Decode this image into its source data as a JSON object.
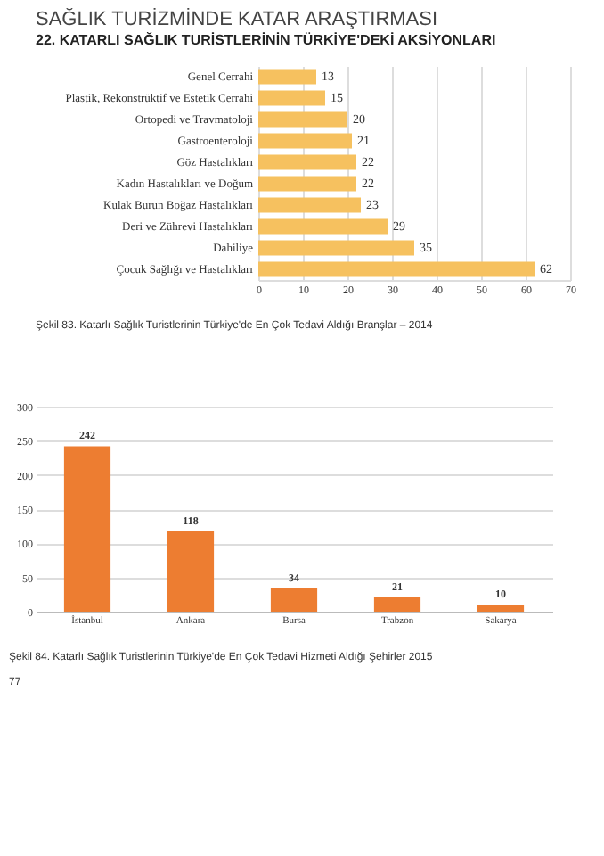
{
  "chart_data": [
    {
      "type": "bar",
      "orientation": "horizontal",
      "title": "SAĞLIK TURİZMİNDE KATAR ARAŞTIRMASI",
      "subtitle": "22. KATARLI SAĞLIK TURİSTLERİNİN TÜRKİYE'DEKİ AKSİYONLARI",
      "categories": [
        "Genel Cerrahi",
        "Plastik, Rekonstrüktif ve Estetik Cerrahi",
        "Ortopedi ve Travmatoloji",
        "Gastroenteroloji",
        "Göz Hastalıkları",
        "Kadın Hastalıkları ve Doğum",
        "Kulak Burun Boğaz Hastalıkları",
        "Deri ve Zührevi Hastalıkları",
        "Dahiliye",
        "Çocuk Sağlığı ve Hastalıkları"
      ],
      "values": [
        13,
        15,
        20,
        21,
        22,
        22,
        23,
        29,
        35,
        62
      ],
      "color": "#f6c15f",
      "xlim": [
        0,
        70
      ],
      "xticks": [
        0,
        10,
        20,
        30,
        40,
        50,
        60,
        70
      ],
      "grid": "x",
      "data_labels": true,
      "annotations": [
        "Şekil 83. Katarlı Sağlık Turistlerinin Türkiye'de En Çok Tedavi Aldığı Branşlar – 2014"
      ]
    },
    {
      "type": "bar",
      "categories": [
        "İstanbul",
        "Ankara",
        "Bursa",
        "Trabzon",
        "Sakarya"
      ],
      "values": [
        242,
        118,
        34,
        21,
        10
      ],
      "color": "#ed7d31",
      "ylim": [
        0,
        300
      ],
      "yticks": [
        0,
        50,
        100,
        150,
        200,
        250,
        300
      ],
      "grid": "y",
      "data_labels": true,
      "annotations": [
        "Şekil 84. Katarlı Sağlık Turistlerinin Türkiye'de En Çok Tedavi Hizmeti Aldığı Şehirler  2015",
        "77"
      ]
    }
  ]
}
